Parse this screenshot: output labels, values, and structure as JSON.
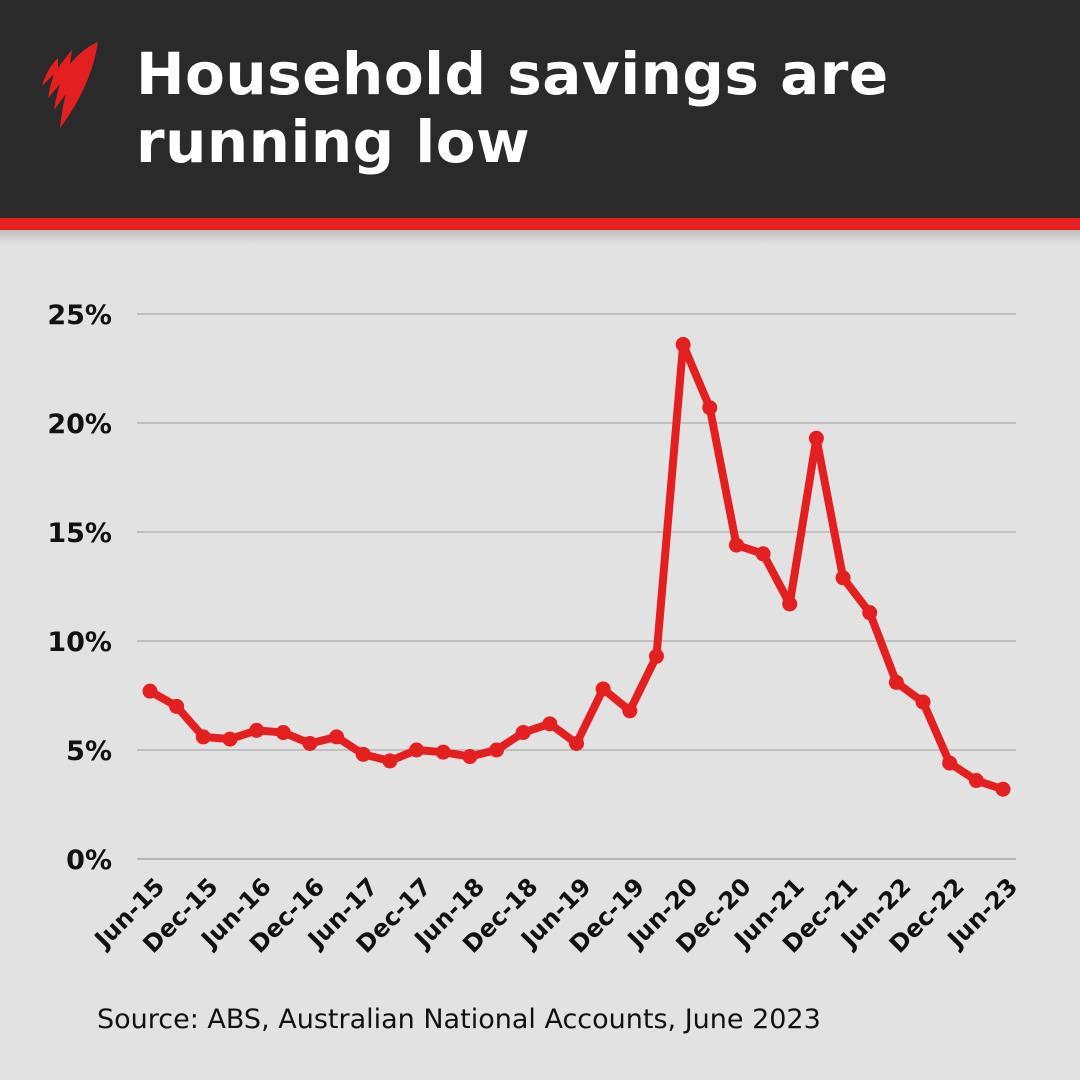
{
  "header": {
    "title": "Household savings are running low",
    "title_lines": [
      "Household savings are",
      "running low"
    ],
    "logo_icon": "sbs-logo-icon",
    "background_color": "#2a2a2a",
    "stripe_color": "#e3201f"
  },
  "source": "Source: ABS, Australian National Accounts, June 2023",
  "chart_data": {
    "type": "line",
    "title": "Household savings are running low",
    "xlabel": "",
    "ylabel": "",
    "ylim": [
      0,
      25
    ],
    "yticks": [
      "0%",
      "5%",
      "10%",
      "15%",
      "20%",
      "25%"
    ],
    "grid": true,
    "legend": null,
    "line_color": "#e3201f",
    "x": [
      "Jun-15",
      "Sep-15",
      "Dec-15",
      "Mar-16",
      "Jun-16",
      "Sep-16",
      "Dec-16",
      "Mar-17",
      "Jun-17",
      "Sep-17",
      "Dec-17",
      "Mar-18",
      "Jun-18",
      "Sep-18",
      "Dec-18",
      "Mar-19",
      "Jun-19",
      "Sep-19",
      "Dec-19",
      "Mar-20",
      "Jun-20",
      "Sep-20",
      "Dec-20",
      "Mar-21",
      "Jun-21",
      "Sep-21",
      "Dec-21",
      "Mar-22",
      "Jun-22",
      "Sep-22",
      "Dec-22",
      "Mar-23",
      "Jun-23"
    ],
    "xtick_labels": [
      "Jun-15",
      "Dec-15",
      "Jun-16",
      "Dec-16",
      "Jun-17",
      "Dec-17",
      "Jun-18",
      "Dec-18",
      "Jun-19",
      "Dec-19",
      "Jun-20",
      "Dec-20",
      "Jun-21",
      "Dec-21",
      "Jun-22",
      "Dec-22",
      "Jun-23"
    ],
    "series": [
      {
        "name": "Household saving ratio",
        "values": [
          7.7,
          7.0,
          5.6,
          5.5,
          5.9,
          5.8,
          5.3,
          5.6,
          4.8,
          4.5,
          5.0,
          4.9,
          4.7,
          5.0,
          5.8,
          6.2,
          5.3,
          7.8,
          6.8,
          9.3,
          23.6,
          20.7,
          14.4,
          14.0,
          11.7,
          19.3,
          12.9,
          11.3,
          8.1,
          7.2,
          4.4,
          3.6,
          3.2
        ]
      }
    ]
  }
}
